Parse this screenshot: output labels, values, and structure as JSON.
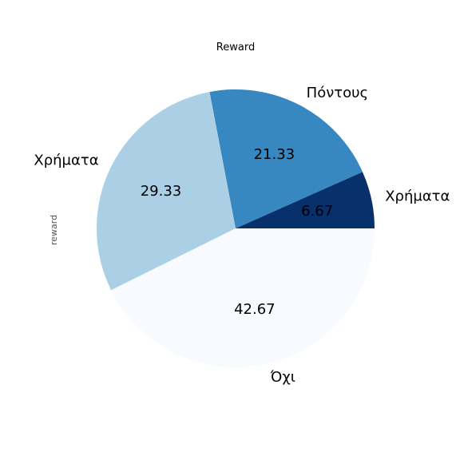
{
  "chart_data": {
    "type": "pie",
    "title": "Reward",
    "ylabel": "reward",
    "labels": [
      "Χρήματα",
      "Πόντους",
      "Χρήματα",
      "Όχι"
    ],
    "values": [
      6.67,
      21.33,
      29.33,
      42.67
    ],
    "value_labels": [
      "6.67",
      "21.33",
      "29.33",
      "42.67"
    ],
    "colors": [
      "#08306b",
      "#3787c0",
      "#abd0e6",
      "#f7fbff"
    ],
    "start_angle_deg": 0,
    "direction": "counterclockwise"
  }
}
